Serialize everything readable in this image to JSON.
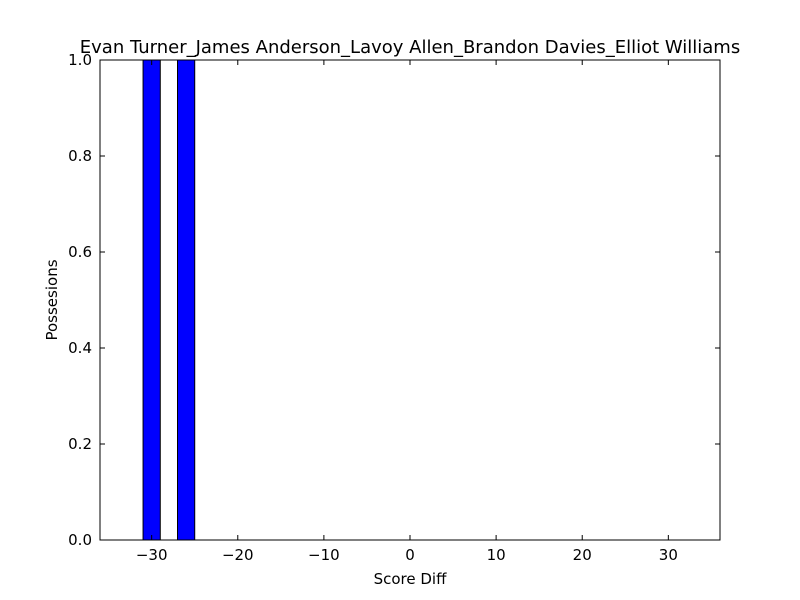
{
  "chart_data": {
    "type": "bar",
    "title": "Evan Turner_James Anderson_Lavoy Allen_Brandon Davies_Elliot Williams",
    "xlabel": "Score Diff",
    "ylabel": "Possesions",
    "xlim": [
      -36,
      36
    ],
    "ylim": [
      0,
      1.0
    ],
    "bin_width": 2,
    "bins": [
      {
        "x": -30,
        "value": 1.0
      },
      {
        "x": -26,
        "value": 1.0
      }
    ],
    "xticks": [
      -30,
      -20,
      -10,
      0,
      10,
      20,
      30
    ],
    "xtick_labels": [
      "−30",
      "−20",
      "−10",
      "0",
      "10",
      "20",
      "30"
    ],
    "yticks": [
      0.0,
      0.2,
      0.4,
      0.6,
      0.8,
      1.0
    ],
    "ytick_labels": [
      "0.0",
      "0.2",
      "0.4",
      "0.6",
      "0.8",
      "1.0"
    ],
    "bar_color": "#0000ff",
    "bar_edge_color": "#000000",
    "grid": false,
    "legend": "none"
  }
}
